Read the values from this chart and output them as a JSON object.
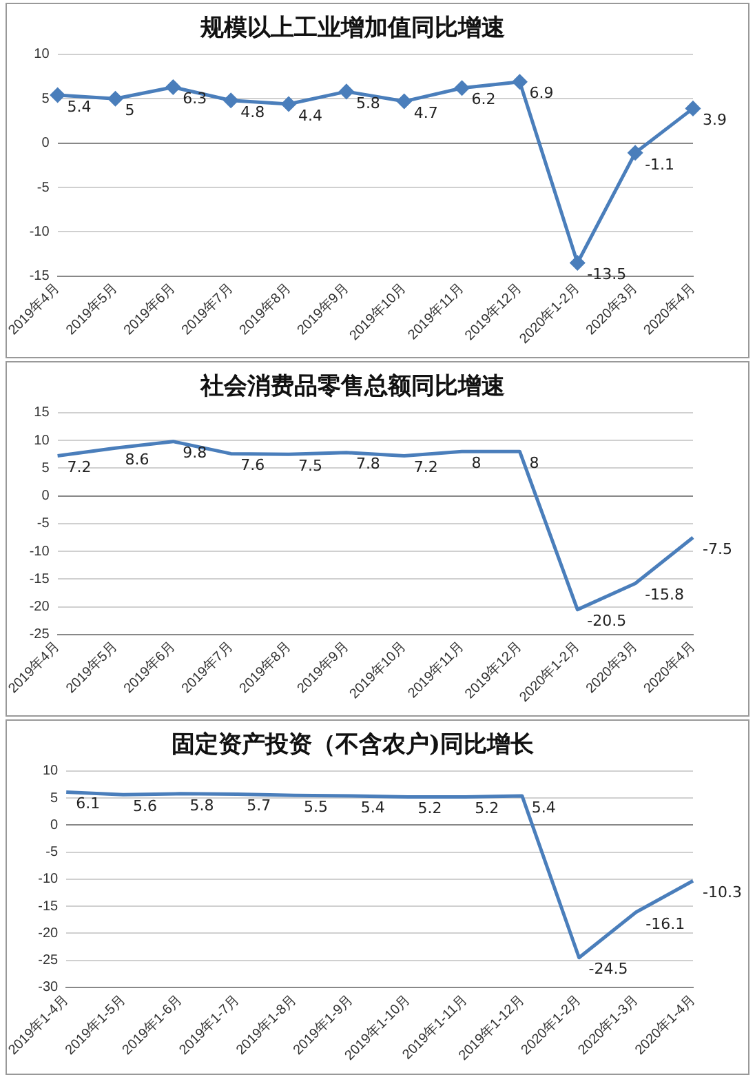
{
  "chart_data": [
    {
      "type": "line",
      "title": "规模以上工业增加值同比增速",
      "categories": [
        "2019年4月",
        "2019年5月",
        "2019年6月",
        "2019年7月",
        "2019年8月",
        "2019年9月",
        "2019年10月",
        "2019年11月",
        "2019年12月",
        "2020年1-2月",
        "2020年3月",
        "2020年4月"
      ],
      "series": [
        {
          "color": "#4a7ebb",
          "values": [
            5.4,
            5,
            6.3,
            4.8,
            4.4,
            5.8,
            4.7,
            6.2,
            6.9,
            -13.5,
            -1.1,
            3.9
          ]
        }
      ],
      "ylim": [
        -15,
        10
      ],
      "yticks": [
        -15,
        -10,
        -5,
        0,
        5,
        10
      ],
      "grid": "y",
      "legend": false,
      "marker": "diamond",
      "data_labels": true
    },
    {
      "type": "line",
      "title": "社会消费品零售总额同比增速",
      "categories": [
        "2019年4月",
        "2019年5月",
        "2019年6月",
        "2019年7月",
        "2019年8月",
        "2019年9月",
        "2019年10月",
        "2019年11月",
        "2019年12月",
        "2020年1-2月",
        "2020年3月",
        "2020年4月"
      ],
      "series": [
        {
          "color": "#4a7ebb",
          "values": [
            7.2,
            8.6,
            9.8,
            7.6,
            7.5,
            7.8,
            7.2,
            8,
            8,
            -20.5,
            -15.8,
            -7.5
          ]
        }
      ],
      "ylim": [
        -25,
        15
      ],
      "yticks": [
        -25,
        -20,
        -15,
        -10,
        -5,
        0,
        5,
        10,
        15
      ],
      "grid": "y",
      "legend": false,
      "data_labels": true
    },
    {
      "type": "line",
      "title": "固定资产投资（不含农户)同比增长",
      "categories": [
        "2019年1-4月",
        "2019年1-5月",
        "2019年1-6月",
        "2019年1-7月",
        "2019年1-8月",
        "2019年1-9月",
        "2019年1-10月",
        "2019年1-11月",
        "2019年1-12月",
        "2020年1-2月",
        "2020年1-3月",
        "2020年1-4月"
      ],
      "series": [
        {
          "color": "#4a7ebb",
          "values": [
            6.1,
            5.6,
            5.8,
            5.7,
            5.5,
            5.4,
            5.2,
            5.2,
            5.4,
            -24.5,
            -16.1,
            -10.3
          ]
        }
      ],
      "ylim": [
        -30,
        10
      ],
      "yticks": [
        -30,
        -25,
        -20,
        -15,
        -10,
        -5,
        0,
        5,
        10
      ],
      "grid": "y",
      "legend": false,
      "data_labels": true
    }
  ]
}
